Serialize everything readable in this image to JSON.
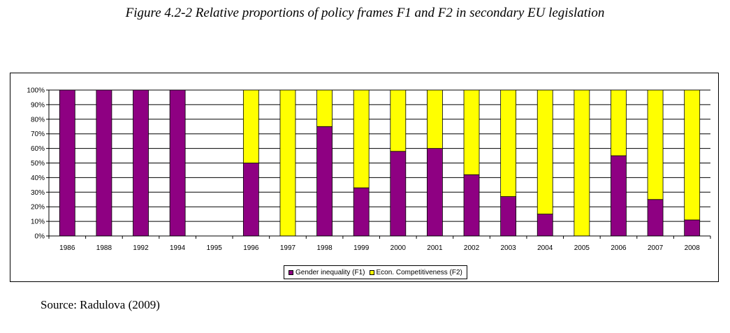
{
  "figure": {
    "title": "Figure 4.2-2 Relative proportions of policy frames F1 and F2 in secondary EU legislation",
    "source": "Source: Radulova (2009)"
  },
  "colors": {
    "f1": "#8e0082",
    "f2": "#ffff00",
    "grid": "#000000"
  },
  "chart_data": {
    "type": "bar",
    "stacked": true,
    "categories": [
      "1986",
      "1988",
      "1992",
      "1994",
      "1995",
      "1996",
      "1997",
      "1998",
      "1999",
      "2000",
      "2001",
      "2002",
      "2003",
      "2004",
      "2005",
      "2006",
      "2007",
      "2008"
    ],
    "series": [
      {
        "name": "Gender inequality (F1)",
        "values": [
          100,
          100,
          100,
          100,
          0,
          50,
          0,
          75,
          33,
          58,
          60,
          42,
          27,
          15,
          0,
          55,
          25,
          11
        ]
      },
      {
        "name": "Econ. Competitiveness (F2)",
        "values": [
          0,
          0,
          0,
          0,
          0,
          50,
          100,
          25,
          67,
          42,
          40,
          58,
          73,
          85,
          100,
          45,
          75,
          89
        ]
      }
    ],
    "y_ticks": [
      "0%",
      "10%",
      "20%",
      "30%",
      "40%",
      "50%",
      "60%",
      "70%",
      "80%",
      "90%",
      "100%"
    ],
    "ylim": [
      0,
      100
    ],
    "grid": true,
    "legend_position": "bottom"
  }
}
